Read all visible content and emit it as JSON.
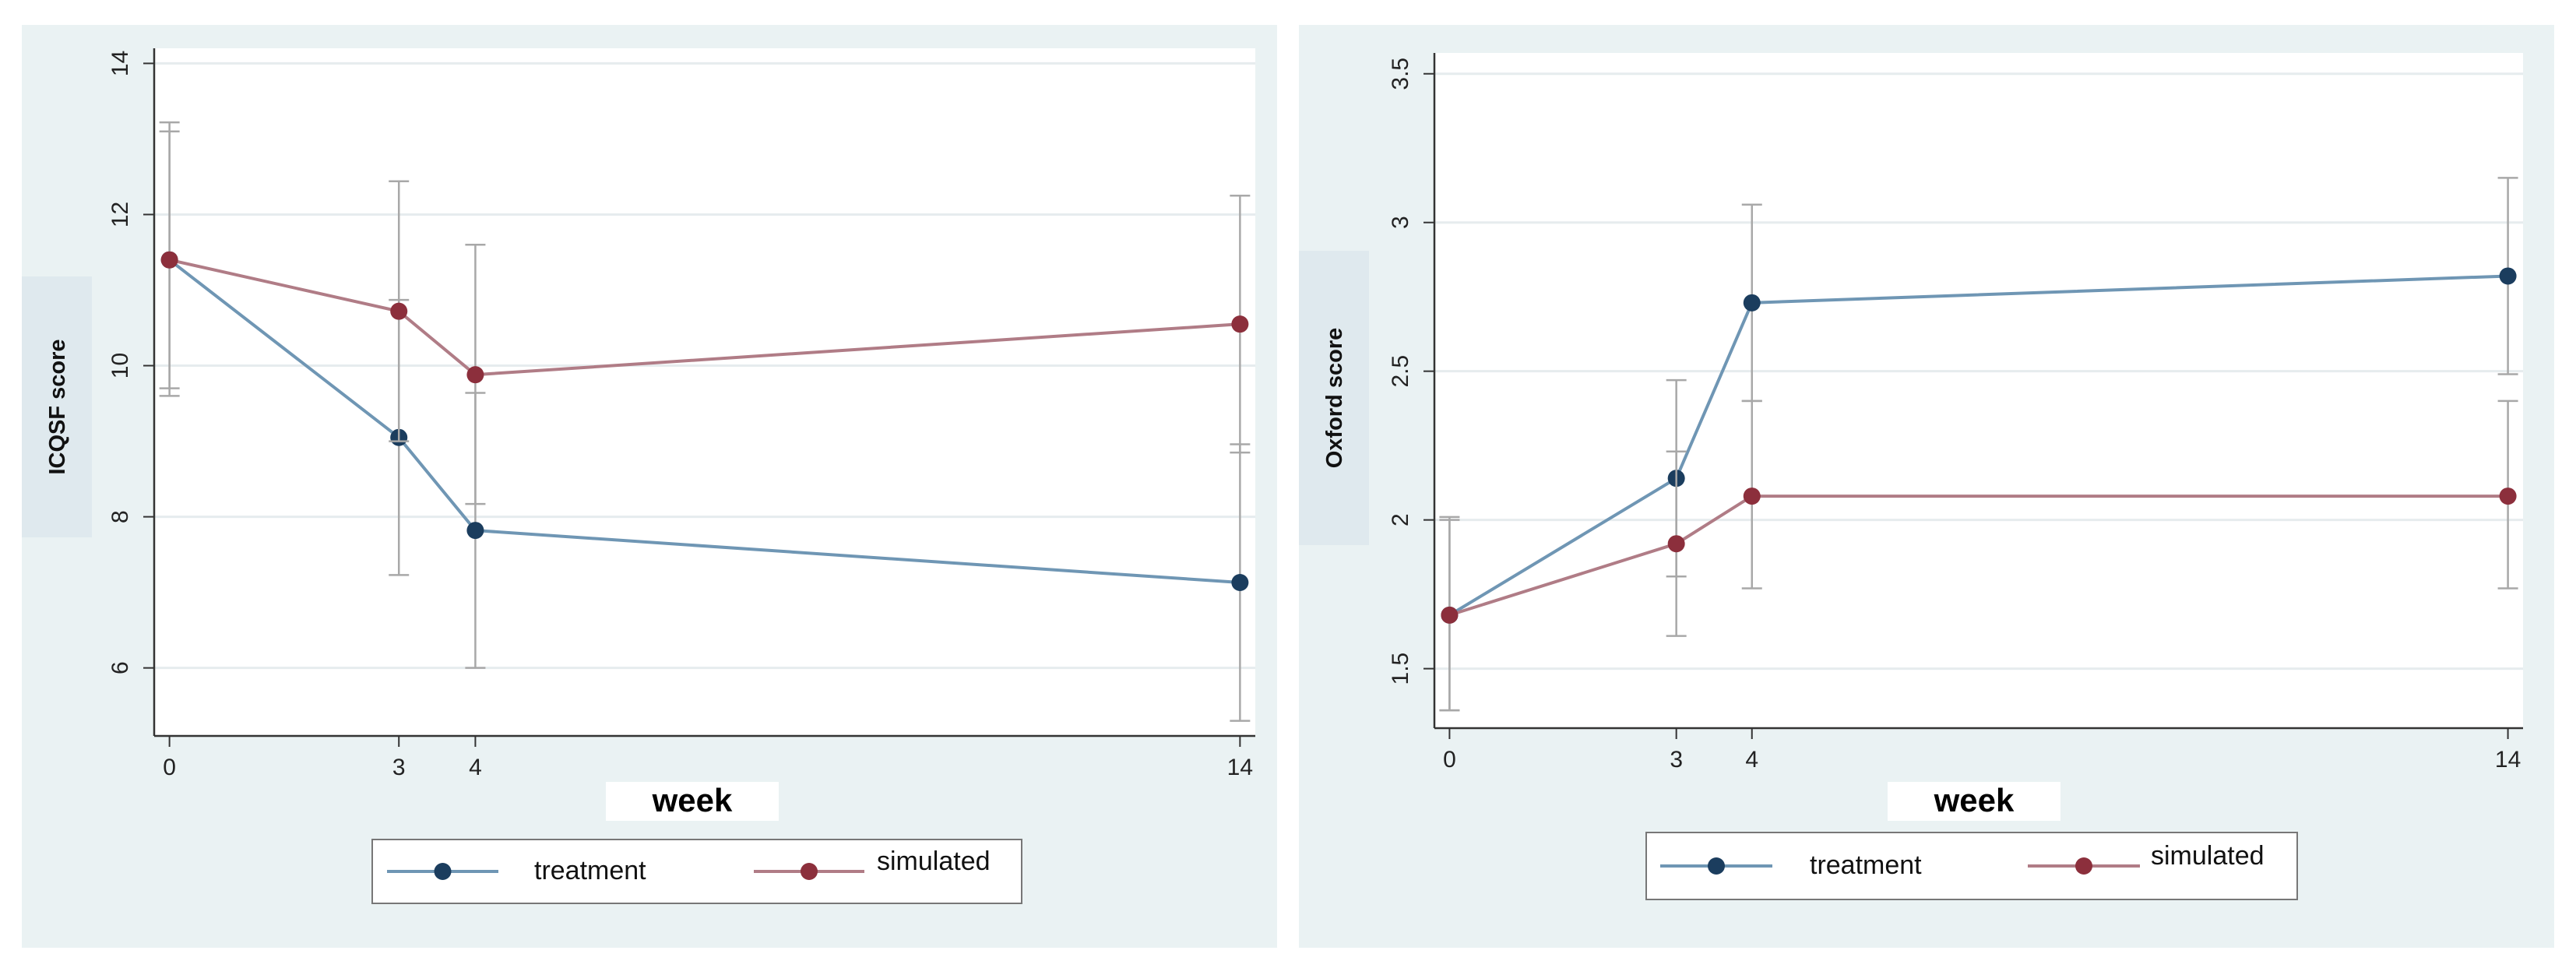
{
  "colors": {
    "panel_bg": "#eaf2f3",
    "plot_bg": "#ffffff",
    "grid": "#e6ecee",
    "axis": "#333333",
    "treatment": "#1b3d5e",
    "simulated": "#8c2f3c",
    "treatment_line": "#6f96b4",
    "simulated_line": "#b07c86",
    "error_bar": "#a8a8a8"
  },
  "chart_data": [
    {
      "type": "line",
      "xlabel": "week",
      "ylabel": "ICQSF score",
      "x": [
        0,
        3,
        4,
        14
      ],
      "x_ticks": [
        "0",
        "3",
        "4",
        "14"
      ],
      "y_ticks": [
        "6",
        "8",
        "10",
        "12",
        "14"
      ],
      "y_tick_values": [
        6,
        8,
        10,
        12,
        14
      ],
      "xlim": [
        -0.2,
        14.2
      ],
      "ylim": [
        5.1,
        14.2
      ],
      "grid": true,
      "legend_position": "bottom",
      "series": [
        {
          "name": "treatment",
          "values": [
            11.4,
            9.05,
            7.82,
            7.13
          ],
          "lower": [
            9.6,
            7.23,
            6.0,
            5.3
          ],
          "upper": [
            13.22,
            10.87,
            9.64,
            8.96
          ]
        },
        {
          "name": "simulated",
          "values": [
            11.4,
            10.72,
            9.88,
            10.55
          ],
          "lower": [
            9.7,
            9.0,
            8.17,
            8.85
          ],
          "upper": [
            13.1,
            12.44,
            11.6,
            12.25
          ]
        }
      ]
    },
    {
      "type": "line",
      "xlabel": "week",
      "ylabel": "Oxford score",
      "x": [
        0,
        3,
        4,
        14
      ],
      "x_ticks": [
        "0",
        "3",
        "4",
        "14"
      ],
      "y_ticks": [
        "1.5",
        "2",
        "2.5",
        "3",
        "3.5"
      ],
      "y_tick_values": [
        1.5,
        2,
        2.5,
        3,
        3.5
      ],
      "xlim": [
        -0.2,
        14.2
      ],
      "ylim": [
        1.3,
        3.57
      ],
      "grid": true,
      "legend_position": "bottom",
      "series": [
        {
          "name": "treatment",
          "values": [
            1.68,
            2.14,
            2.73,
            2.82
          ],
          "lower": [
            1.36,
            1.81,
            2.4,
            2.49
          ],
          "upper": [
            2.0,
            2.47,
            3.06,
            3.15
          ]
        },
        {
          "name": "simulated",
          "values": [
            1.68,
            1.92,
            2.08,
            2.08
          ],
          "lower": [
            1.36,
            1.61,
            1.77,
            1.77
          ],
          "upper": [
            2.01,
            2.23,
            2.4,
            2.4
          ]
        }
      ]
    }
  ]
}
